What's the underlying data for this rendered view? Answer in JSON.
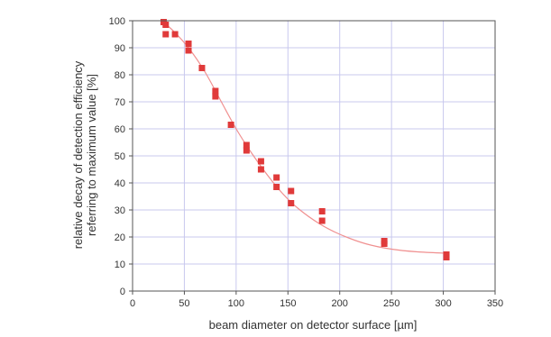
{
  "chart_data": {
    "type": "scatter",
    "xlabel": "beam diameter on detector surface [µm]",
    "ylabel_lines": [
      "relative decay of detection efficiency",
      "referring to maximum value [%]"
    ],
    "xlim": [
      0,
      350
    ],
    "ylim": [
      0,
      100
    ],
    "x_ticks": [
      "0",
      "50",
      "100",
      "150",
      "200",
      "250",
      "300",
      "350"
    ],
    "y_ticks": [
      "0",
      "10",
      "20",
      "30",
      "40",
      "50",
      "60",
      "70",
      "80",
      "90",
      "100"
    ],
    "grid": true,
    "colors": {
      "points": "#e03a3a",
      "fit": "#f09090",
      "grid": "#c8c8ee",
      "frame": "#555555"
    },
    "series": [
      {
        "points": [
          [
            30,
            99.5
          ],
          [
            32,
            98.5
          ],
          [
            32,
            95
          ],
          [
            41,
            95
          ],
          [
            54,
            91.5
          ],
          [
            54,
            89
          ],
          [
            67,
            82.5
          ],
          [
            80,
            74
          ],
          [
            80,
            72
          ],
          [
            95,
            61.5
          ],
          [
            110,
            54
          ],
          [
            110,
            52
          ],
          [
            124,
            48
          ],
          [
            124,
            45
          ],
          [
            139,
            42
          ],
          [
            139,
            38.5
          ],
          [
            153,
            37
          ],
          [
            153,
            32.5
          ],
          [
            183,
            29.5
          ],
          [
            183,
            26
          ],
          [
            243,
            18.5
          ],
          [
            243,
            17.5
          ],
          [
            303,
            13.5
          ],
          [
            303,
            12.5
          ]
        ]
      }
    ],
    "fit_curve": [
      [
        28,
        100
      ],
      [
        40,
        96
      ],
      [
        55,
        89.5
      ],
      [
        70,
        81
      ],
      [
        85,
        70.5
      ],
      [
        100,
        60
      ],
      [
        115,
        51
      ],
      [
        130,
        43
      ],
      [
        145,
        36
      ],
      [
        160,
        30.5
      ],
      [
        180,
        25
      ],
      [
        200,
        21
      ],
      [
        225,
        17.5
      ],
      [
        250,
        15.5
      ],
      [
        275,
        14.5
      ],
      [
        303,
        14
      ]
    ]
  }
}
